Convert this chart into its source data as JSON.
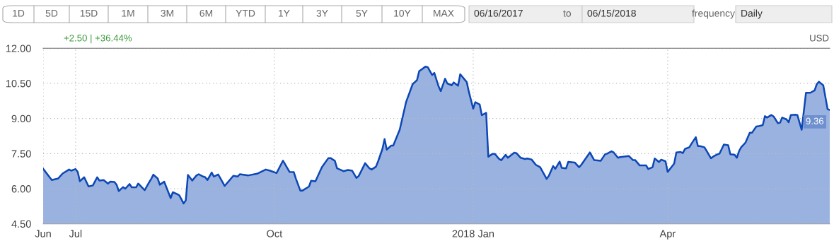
{
  "chart_data": {
    "type": "area",
    "x": [
      "2017-06-16",
      "2017-06-20",
      "2017-06-23",
      "2017-06-25",
      "2017-06-28",
      "2017-06-29",
      "2017-07-01",
      "2017-07-02",
      "2017-07-03",
      "2017-07-05",
      "2017-07-07",
      "2017-07-09",
      "2017-07-11",
      "2017-07-12",
      "2017-07-14",
      "2017-07-16",
      "2017-07-17",
      "2017-07-19",
      "2017-07-20",
      "2017-07-21",
      "2017-07-23",
      "2017-07-24",
      "2017-07-26",
      "2017-07-27",
      "2017-07-29",
      "2017-07-30",
      "2017-08-02",
      "2017-08-04",
      "2017-08-05",
      "2017-08-06",
      "2017-08-08",
      "2017-08-09",
      "2017-08-11",
      "2017-08-14",
      "2017-08-15",
      "2017-08-17",
      "2017-08-18",
      "2017-08-20",
      "2017-08-21",
      "2017-08-22",
      "2017-08-24",
      "2017-08-26",
      "2017-08-27",
      "2017-08-29",
      "2017-08-30",
      "2017-08-31",
      "2017-09-02",
      "2017-09-03",
      "2017-09-05",
      "2017-09-06",
      "2017-09-08",
      "2017-09-12",
      "2017-09-14",
      "2017-09-15",
      "2017-09-19",
      "2017-09-23",
      "2017-09-27",
      "2017-09-29",
      "2017-10-02",
      "2017-10-05",
      "2017-10-08",
      "2017-10-10",
      "2017-10-11",
      "2017-10-13",
      "2017-10-14",
      "2017-10-17",
      "2017-10-18",
      "2017-10-20",
      "2017-10-23",
      "2017-10-26",
      "2017-10-27",
      "2017-10-29",
      "2017-10-30",
      "2017-11-02",
      "2017-11-04",
      "2017-11-06",
      "2017-11-08",
      "2017-11-09",
      "2017-11-12",
      "2017-11-14",
      "2017-11-15",
      "2017-11-17",
      "2017-11-18",
      "2017-11-20",
      "2017-11-21",
      "2017-11-22",
      "2017-11-24",
      "2017-11-25",
      "2017-11-28",
      "2017-12-01",
      "2017-12-04",
      "2017-12-06",
      "2017-12-07",
      "2017-12-10",
      "2017-12-11",
      "2017-12-13",
      "2017-12-14",
      "2017-12-16",
      "2017-12-17",
      "2017-12-19",
      "2017-12-20",
      "2017-12-22",
      "2017-12-23",
      "2017-12-25",
      "2017-12-26",
      "2017-12-28",
      "2017-12-29",
      "2017-12-30",
      "2018-01-01",
      "2018-01-02",
      "2018-01-04",
      "2018-01-05",
      "2018-01-07",
      "2018-01-08",
      "2018-01-10",
      "2018-01-11",
      "2018-01-13",
      "2018-01-14",
      "2018-01-16",
      "2018-01-17",
      "2018-01-20",
      "2018-01-21",
      "2018-01-23",
      "2018-01-25",
      "2018-01-26",
      "2018-01-28",
      "2018-01-30",
      "2018-02-01",
      "2018-02-04",
      "2018-02-05",
      "2018-02-07",
      "2018-02-08",
      "2018-02-10",
      "2018-02-11",
      "2018-02-13",
      "2018-02-14",
      "2018-02-17",
      "2018-02-19",
      "2018-02-20",
      "2018-02-24",
      "2018-02-26",
      "2018-03-01",
      "2018-03-03",
      "2018-03-04",
      "2018-03-06",
      "2018-03-07",
      "2018-03-09",
      "2018-03-10",
      "2018-03-14",
      "2018-03-16",
      "2018-03-17",
      "2018-03-19",
      "2018-03-22",
      "2018-03-23",
      "2018-03-25",
      "2018-03-26",
      "2018-03-28",
      "2018-03-29",
      "2018-03-31",
      "2018-04-01",
      "2018-04-04",
      "2018-04-05",
      "2018-04-07",
      "2018-04-08",
      "2018-04-09",
      "2018-04-11",
      "2018-04-12",
      "2018-04-14",
      "2018-04-15",
      "2018-04-16",
      "2018-04-18",
      "2018-04-19",
      "2018-04-21",
      "2018-04-22",
      "2018-04-24",
      "2018-04-25",
      "2018-04-27",
      "2018-04-29",
      "2018-04-30",
      "2018-05-02",
      "2018-05-03",
      "2018-05-04",
      "2018-05-05",
      "2018-05-07",
      "2018-05-09",
      "2018-05-10",
      "2018-05-12",
      "2018-05-13",
      "2018-05-15",
      "2018-05-16",
      "2018-05-17",
      "2018-05-19",
      "2018-05-20",
      "2018-05-22",
      "2018-05-23",
      "2018-05-24",
      "2018-05-26",
      "2018-05-27",
      "2018-05-28",
      "2018-05-30",
      "2018-05-31",
      "2018-06-02",
      "2018-06-04",
      "2018-06-06",
      "2018-06-08",
      "2018-06-09",
      "2018-06-10",
      "2018-06-12",
      "2018-06-14",
      "2018-06-15"
    ],
    "series": [
      {
        "color": "#0d47b5",
        "values": [
          6.85,
          6.37,
          6.44,
          6.65,
          6.82,
          6.77,
          6.84,
          6.72,
          6.32,
          6.49,
          6.1,
          6.14,
          6.49,
          6.35,
          6.37,
          6.22,
          6.3,
          6.29,
          6.17,
          5.9,
          6.07,
          6.0,
          6.2,
          6.06,
          6.06,
          6.22,
          5.94,
          6.27,
          6.42,
          6.6,
          6.44,
          6.17,
          6.3,
          5.6,
          5.85,
          5.77,
          5.72,
          5.37,
          5.5,
          6.59,
          6.35,
          6.57,
          6.62,
          6.52,
          6.49,
          6.37,
          6.69,
          6.52,
          6.61,
          6.45,
          6.12,
          6.55,
          6.52,
          6.62,
          6.57,
          6.64,
          6.82,
          6.77,
          6.67,
          7.2,
          6.72,
          6.71,
          6.42,
          5.92,
          5.92,
          6.09,
          6.34,
          6.32,
          6.92,
          7.31,
          7.31,
          7.19,
          6.87,
          6.75,
          6.8,
          6.77,
          6.46,
          6.54,
          7.09,
          6.87,
          6.82,
          6.94,
          7.17,
          7.7,
          8.12,
          7.67,
          7.84,
          7.84,
          8.52,
          9.72,
          10.47,
          10.64,
          11.02,
          11.22,
          11.19,
          10.86,
          10.95,
          10.37,
          10.17,
          10.7,
          10.5,
          10.42,
          10.54,
          10.4,
          10.89,
          10.67,
          10.56,
          10.14,
          9.42,
          9.7,
          9.6,
          9.14,
          9.24,
          7.37,
          7.49,
          7.49,
          7.27,
          7.22,
          7.45,
          7.32,
          7.54,
          7.52,
          7.32,
          7.27,
          7.29,
          7.25,
          7.02,
          6.92,
          6.42,
          6.55,
          6.97,
          6.85,
          7.16,
          6.89,
          6.87,
          7.15,
          7.12,
          6.92,
          7.02,
          7.55,
          7.22,
          7.19,
          7.47,
          7.5,
          7.6,
          7.55,
          7.32,
          7.35,
          7.4,
          7.22,
          7.22,
          7.0,
          7.0,
          6.84,
          6.92,
          7.29,
          7.14,
          7.24,
          7.17,
          6.72,
          7.07,
          7.55,
          7.57,
          7.52,
          7.7,
          7.77,
          7.92,
          8.2,
          7.82,
          7.82,
          7.77,
          7.62,
          7.3,
          7.37,
          7.47,
          7.5,
          7.89,
          7.86,
          7.47,
          7.45,
          7.32,
          7.6,
          7.77,
          7.97,
          8.39,
          8.39,
          8.66,
          8.67,
          8.72,
          9.1,
          9.04,
          9.15,
          9.09,
          8.8,
          8.82,
          9.04,
          8.96,
          8.84,
          9.15,
          9.16,
          9.15,
          8.52,
          10.1,
          10.1,
          10.2,
          10.47,
          10.57,
          10.42,
          9.4,
          9.36
        ]
      }
    ],
    "xlim": [
      "2017-06-16",
      "2018-06-15"
    ],
    "xticks": [
      {
        "value": "2017-06-16",
        "label": "Jun"
      },
      {
        "value": "2017-07-01",
        "label": "Jul"
      },
      {
        "value": "2017-10-01",
        "label": "Oct"
      },
      {
        "value": "2018-01-01",
        "label": "2018 Jan"
      },
      {
        "value": "2018-04-01",
        "label": "Apr"
      }
    ],
    "ylim": [
      4.5,
      12
    ],
    "yticks": [
      {
        "value": 4.5,
        "label": "4.50"
      },
      {
        "value": 6,
        "label": "6.00"
      },
      {
        "value": 7.5,
        "label": "7.50"
      },
      {
        "value": 9,
        "label": "9.00"
      },
      {
        "value": 10.5,
        "label": "10.50"
      },
      {
        "value": 12,
        "label": "12.00"
      }
    ],
    "grid": true,
    "subtitle": "+2.50 | +36.44%",
    "ylabel": "USD",
    "annotations": [
      "1D",
      "5D",
      "15D",
      "1M",
      "3M",
      "6M",
      "YTD",
      "1Y",
      "3Y",
      "5Y",
      "10Y",
      "MAX",
      "06/16/2017",
      "to",
      "06/15/2018",
      "frequency",
      "Daily",
      {
        "text": "9.36",
        "x": "2018-06-15",
        "y": 9.36
      }
    ]
  }
}
